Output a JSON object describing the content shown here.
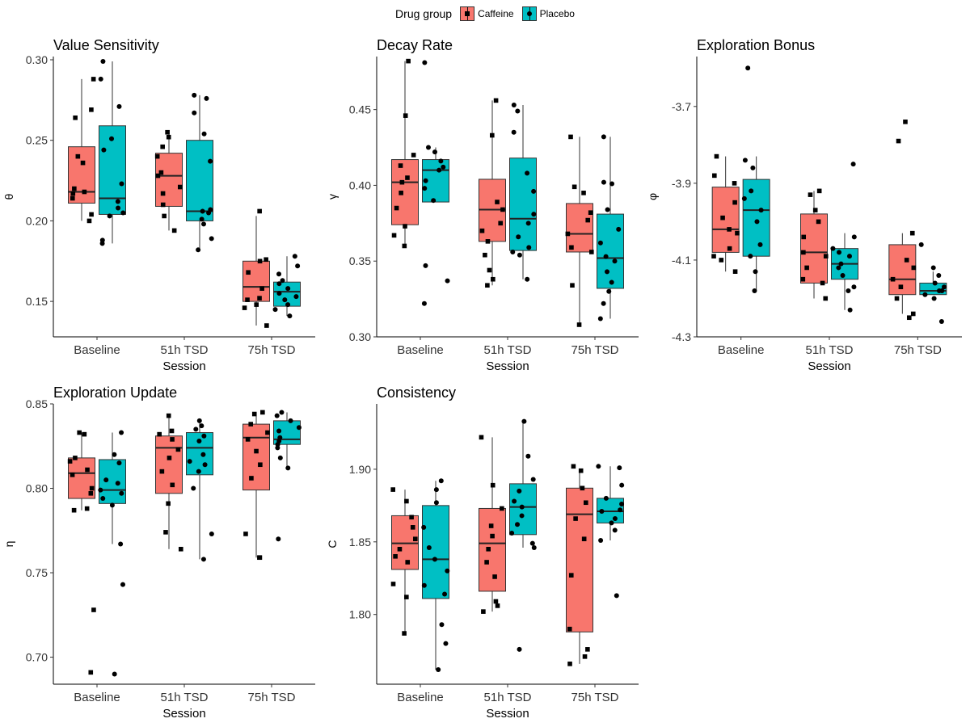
{
  "legend": {
    "title": "Drug group",
    "items": [
      {
        "label": "Caffeine",
        "color": "#F8766D",
        "marker": "square"
      },
      {
        "label": "Placebo",
        "color": "#00BFC4",
        "marker": "circle"
      }
    ]
  },
  "chart_data": [
    {
      "type": "box",
      "title": "Value Sensitivity",
      "xlabel": "Session",
      "ylabel": "θ",
      "categories": [
        "Baseline",
        "51h TSD",
        "75h TSD"
      ],
      "ylim": [
        0.128,
        0.302
      ],
      "yticks": [
        0.15,
        0.2,
        0.25,
        0.3
      ],
      "ytick_labels": [
        "0.15",
        "0.20",
        "0.25",
        "0.30"
      ],
      "series": [
        {
          "name": "Caffeine",
          "color": "#F8766D",
          "boxes": [
            {
              "min": 0.2,
              "q1": 0.211,
              "median": 0.218,
              "q3": 0.246,
              "max": 0.288,
              "points": [
                0.288,
                0.269,
                0.264,
                0.24,
                0.236,
                0.22,
                0.218,
                0.217,
                0.214,
                0.204,
                0.2
              ]
            },
            {
              "min": 0.194,
              "q1": 0.209,
              "median": 0.228,
              "q3": 0.242,
              "max": 0.255,
              "points": [
                0.255,
                0.252,
                0.246,
                0.24,
                0.23,
                0.228,
                0.221,
                0.217,
                0.21,
                0.203,
                0.194
              ]
            },
            {
              "min": 0.135,
              "q1": 0.15,
              "median": 0.159,
              "q3": 0.175,
              "max": 0.203,
              "points": [
                0.206,
                0.176,
                0.175,
                0.168,
                0.158,
                0.152,
                0.151,
                0.148,
                0.146,
                0.135
              ]
            }
          ]
        },
        {
          "name": "Placebo",
          "color": "#00BFC4",
          "boxes": [
            {
              "min": 0.186,
              "q1": 0.204,
              "median": 0.214,
              "q3": 0.259,
              "max": 0.299,
              "points": [
                0.299,
                0.288,
                0.271,
                0.251,
                0.244,
                0.223,
                0.212,
                0.208,
                0.205,
                0.203,
                0.188,
                0.186
              ]
            },
            {
              "min": 0.182,
              "q1": 0.2,
              "median": 0.206,
              "q3": 0.25,
              "max": 0.278,
              "points": [
                0.278,
                0.276,
                0.267,
                0.254,
                0.237,
                0.207,
                0.206,
                0.205,
                0.201,
                0.198,
                0.189,
                0.182
              ]
            },
            {
              "min": 0.141,
              "q1": 0.147,
              "median": 0.156,
              "q3": 0.162,
              "max": 0.178,
              "points": [
                0.178,
                0.172,
                0.167,
                0.163,
                0.161,
                0.158,
                0.155,
                0.153,
                0.151,
                0.148,
                0.145,
                0.141
              ]
            }
          ]
        }
      ]
    },
    {
      "type": "box",
      "title": "Decay Rate",
      "xlabel": "Session",
      "ylabel": "γ",
      "categories": [
        "Baseline",
        "51h TSD",
        "75h TSD"
      ],
      "ylim": [
        0.3,
        0.485
      ],
      "yticks": [
        0.3,
        0.35,
        0.4,
        0.45
      ],
      "ytick_labels": [
        "0.30",
        "0.35",
        "0.40",
        "0.45"
      ],
      "series": [
        {
          "name": "Caffeine",
          "color": "#F8766D",
          "boxes": [
            {
              "min": 0.36,
              "q1": 0.374,
              "median": 0.402,
              "q3": 0.417,
              "max": 0.482,
              "points": [
                0.482,
                0.446,
                0.42,
                0.413,
                0.405,
                0.402,
                0.395,
                0.385,
                0.373,
                0.367,
                0.36
              ]
            },
            {
              "min": 0.334,
              "q1": 0.363,
              "median": 0.384,
              "q3": 0.404,
              "max": 0.456,
              "points": [
                0.456,
                0.433,
                0.389,
                0.384,
                0.375,
                0.37,
                0.363,
                0.354,
                0.344,
                0.338,
                0.334
              ]
            },
            {
              "min": 0.308,
              "q1": 0.356,
              "median": 0.368,
              "q3": 0.388,
              "max": 0.432,
              "points": [
                0.432,
                0.399,
                0.395,
                0.382,
                0.377,
                0.368,
                0.359,
                0.356,
                0.334,
                0.308
              ]
            }
          ]
        },
        {
          "name": "Placebo",
          "color": "#00BFC4",
          "boxes": [
            {
              "min": 0.389,
              "q1": 0.389,
              "median": 0.41,
              "q3": 0.417,
              "max": 0.425,
              "points": [
                0.481,
                0.425,
                0.422,
                0.416,
                0.412,
                0.41,
                0.403,
                0.398,
                0.39,
                0.347,
                0.337,
                0.322
              ]
            },
            {
              "min": 0.338,
              "q1": 0.357,
              "median": 0.378,
              "q3": 0.418,
              "max": 0.453,
              "points": [
                0.453,
                0.449,
                0.435,
                0.408,
                0.396,
                0.381,
                0.375,
                0.366,
                0.359,
                0.356,
                0.354,
                0.338
              ]
            },
            {
              "min": 0.312,
              "q1": 0.332,
              "median": 0.352,
              "q3": 0.381,
              "max": 0.432,
              "points": [
                0.432,
                0.402,
                0.401,
                0.384,
                0.371,
                0.362,
                0.353,
                0.35,
                0.343,
                0.336,
                0.33,
                0.322,
                0.312
              ]
            }
          ]
        }
      ]
    },
    {
      "type": "box",
      "title": "Exploration Bonus",
      "xlabel": "Session",
      "ylabel": "φ",
      "categories": [
        "Baseline",
        "51h TSD",
        "75h TSD"
      ],
      "ylim": [
        -4.3,
        -3.57
      ],
      "yticks": [
        -4.3,
        -4.1,
        -3.9,
        -3.7
      ],
      "ytick_labels": [
        "-4.3",
        "-4.1",
        "-3.9",
        "-3.7"
      ],
      "series": [
        {
          "name": "Caffeine",
          "color": "#F8766D",
          "boxes": [
            {
              "min": -4.13,
              "q1": -4.08,
              "median": -4.02,
              "q3": -3.91,
              "max": -3.83,
              "points": [
                -3.83,
                -3.88,
                -3.9,
                -3.95,
                -3.99,
                -4.02,
                -4.03,
                -4.07,
                -4.09,
                -4.1,
                -4.13
              ]
            },
            {
              "min": -4.2,
              "q1": -4.16,
              "median": -4.08,
              "q3": -3.98,
              "max": -3.92,
              "points": [
                -3.92,
                -3.93,
                -3.97,
                -4.0,
                -4.04,
                -4.08,
                -4.09,
                -4.12,
                -4.15,
                -4.16,
                -4.2
              ]
            },
            {
              "min": -4.24,
              "q1": -4.19,
              "median": -4.15,
              "q3": -4.06,
              "max": -4.03,
              "points": [
                -3.74,
                -3.79,
                -4.03,
                -4.1,
                -4.12,
                -4.15,
                -4.17,
                -4.2,
                -4.24,
                -4.25
              ]
            }
          ]
        },
        {
          "name": "Placebo",
          "color": "#00BFC4",
          "boxes": [
            {
              "min": -4.18,
              "q1": -4.09,
              "median": -3.97,
              "q3": -3.89,
              "max": -3.83,
              "points": [
                -3.6,
                -3.84,
                -3.86,
                -3.92,
                -3.94,
                -3.97,
                -4.0,
                -4.06,
                -4.09,
                -4.13,
                -4.18
              ]
            },
            {
              "min": -4.23,
              "q1": -4.15,
              "median": -4.11,
              "q3": -4.07,
              "max": -4.03,
              "points": [
                -3.85,
                -4.04,
                -4.07,
                -4.08,
                -4.09,
                -4.11,
                -4.12,
                -4.14,
                -4.17,
                -4.18,
                -4.23
              ]
            },
            {
              "min": -4.19,
              "q1": -4.19,
              "median": -4.18,
              "q3": -4.16,
              "max": -4.13,
              "points": [
                -4.06,
                -4.12,
                -4.14,
                -4.16,
                -4.17,
                -4.18,
                -4.18,
                -4.19,
                -4.2,
                -4.26
              ]
            }
          ]
        }
      ]
    },
    {
      "type": "box",
      "title": "Exploration Update",
      "xlabel": "Session",
      "ylabel": "η",
      "categories": [
        "Baseline",
        "51h TSD",
        "75h TSD"
      ],
      "ylim": [
        0.684,
        0.85
      ],
      "yticks": [
        0.7,
        0.75,
        0.8,
        0.85
      ],
      "ytick_labels": [
        "0.70",
        "0.75",
        "0.80",
        "0.85"
      ],
      "series": [
        {
          "name": "Caffeine",
          "color": "#F8766D",
          "boxes": [
            {
              "min": 0.787,
              "q1": 0.794,
              "median": 0.809,
              "q3": 0.818,
              "max": 0.833,
              "points": [
                0.833,
                0.832,
                0.818,
                0.816,
                0.811,
                0.808,
                0.8,
                0.797,
                0.788,
                0.787,
                0.728,
                0.691
              ]
            },
            {
              "min": 0.764,
              "q1": 0.797,
              "median": 0.824,
              "q3": 0.831,
              "max": 0.843,
              "points": [
                0.843,
                0.834,
                0.832,
                0.829,
                0.823,
                0.818,
                0.81,
                0.802,
                0.791,
                0.774,
                0.764
              ]
            },
            {
              "min": 0.759,
              "q1": 0.799,
              "median": 0.83,
              "q3": 0.838,
              "max": 0.845,
              "points": [
                0.845,
                0.844,
                0.838,
                0.833,
                0.829,
                0.822,
                0.814,
                0.806,
                0.773,
                0.759,
                0.759
              ]
            }
          ]
        },
        {
          "name": "Placebo",
          "color": "#00BFC4",
          "boxes": [
            {
              "min": 0.767,
              "q1": 0.791,
              "median": 0.799,
              "q3": 0.817,
              "max": 0.833,
              "points": [
                0.833,
                0.82,
                0.815,
                0.805,
                0.803,
                0.799,
                0.797,
                0.794,
                0.79,
                0.767,
                0.743,
                0.69
              ]
            },
            {
              "min": 0.758,
              "q1": 0.808,
              "median": 0.824,
              "q3": 0.833,
              "max": 0.84,
              "points": [
                0.84,
                0.837,
                0.835,
                0.831,
                0.828,
                0.82,
                0.816,
                0.814,
                0.81,
                0.8,
                0.773,
                0.758
              ]
            },
            {
              "min": 0.812,
              "q1": 0.826,
              "median": 0.829,
              "q3": 0.84,
              "max": 0.845,
              "points": [
                0.845,
                0.843,
                0.84,
                0.836,
                0.834,
                0.83,
                0.828,
                0.826,
                0.824,
                0.818,
                0.812,
                0.77
              ]
            }
          ]
        }
      ]
    },
    {
      "type": "box",
      "title": "Consistency",
      "xlabel": "Session",
      "ylabel": "C",
      "categories": [
        "Baseline",
        "51h TSD",
        "75h TSD"
      ],
      "ylim": [
        1.752,
        1.945
      ],
      "yticks": [
        1.8,
        1.85,
        1.9
      ],
      "ytick_labels": [
        "1.80",
        "1.85",
        "1.90"
      ],
      "series": [
        {
          "name": "Caffeine",
          "color": "#F8766D",
          "boxes": [
            {
              "min": 1.787,
              "q1": 1.831,
              "median": 1.849,
              "q3": 1.868,
              "max": 1.886,
              "points": [
                1.886,
                1.878,
                1.867,
                1.86,
                1.852,
                1.845,
                1.84,
                1.836,
                1.821,
                1.812,
                1.787
              ]
            },
            {
              "min": 1.802,
              "q1": 1.816,
              "median": 1.849,
              "q3": 1.873,
              "max": 1.922,
              "points": [
                1.922,
                1.889,
                1.873,
                1.861,
                1.854,
                1.845,
                1.836,
                1.826,
                1.809,
                1.806,
                1.802
              ]
            },
            {
              "min": 1.766,
              "q1": 1.788,
              "median": 1.869,
              "q3": 1.887,
              "max": 1.9,
              "points": [
                1.902,
                1.899,
                1.887,
                1.877,
                1.866,
                1.852,
                1.827,
                1.79,
                1.776,
                1.771,
                1.766
              ]
            }
          ]
        },
        {
          "name": "Placebo",
          "color": "#00BFC4",
          "boxes": [
            {
              "min": 1.762,
              "q1": 1.811,
              "median": 1.838,
              "q3": 1.875,
              "max": 1.892,
              "points": [
                1.892,
                1.886,
                1.877,
                1.86,
                1.846,
                1.838,
                1.83,
                1.82,
                1.814,
                1.793,
                1.78,
                1.762
              ]
            },
            {
              "min": 1.846,
              "q1": 1.855,
              "median": 1.874,
              "q3": 1.89,
              "max": 1.933,
              "points": [
                1.933,
                1.909,
                1.893,
                1.885,
                1.878,
                1.874,
                1.868,
                1.862,
                1.856,
                1.849,
                1.846,
                1.776
              ]
            },
            {
              "min": 1.851,
              "q1": 1.863,
              "median": 1.871,
              "q3": 1.88,
              "max": 1.902,
              "points": [
                1.902,
                1.901,
                1.889,
                1.88,
                1.876,
                1.872,
                1.871,
                1.866,
                1.863,
                1.858,
                1.851,
                1.813
              ]
            }
          ]
        }
      ]
    }
  ]
}
